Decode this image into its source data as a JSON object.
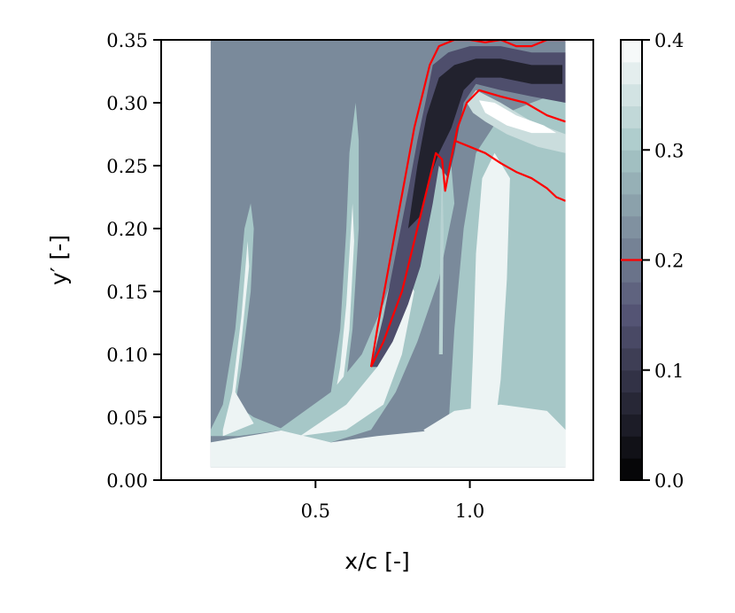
{
  "chart_data": {
    "type": "contour",
    "xlabel": "x/c [-]",
    "ylabel": "y′ [-]",
    "xlim": [
      0.0,
      1.4
    ],
    "ylim": [
      0.0,
      0.35
    ],
    "x_ticks": [
      {
        "value": 0.5,
        "label": "0.5"
      },
      {
        "value": 1.0,
        "label": "1.0"
      }
    ],
    "y_ticks": [
      {
        "value": 0.0,
        "label": "0.00"
      },
      {
        "value": 0.05,
        "label": "0.05"
      },
      {
        "value": 0.1,
        "label": "0.10"
      },
      {
        "value": 0.15,
        "label": "0.15"
      },
      {
        "value": 0.2,
        "label": "0.20"
      },
      {
        "value": 0.25,
        "label": "0.25"
      },
      {
        "value": 0.3,
        "label": "0.30"
      },
      {
        "value": 0.35,
        "label": "0.35"
      }
    ],
    "data_extent": {
      "x": [
        0.16,
        1.31
      ],
      "y": [
        0.01,
        0.35
      ]
    },
    "colorbar": {
      "range": [
        0.0,
        0.4
      ],
      "ticks": [
        {
          "value": 0.0,
          "label": "0.0"
        },
        {
          "value": 0.1,
          "label": "0.1"
        },
        {
          "value": 0.2,
          "label": "0.2"
        },
        {
          "value": 0.3,
          "label": "0.3"
        },
        {
          "value": 0.4,
          "label": "0.4"
        }
      ],
      "levels": 20,
      "colormap": "bone",
      "highlight_level": 0.2,
      "highlight_color": "#ff0000"
    },
    "background_level": 0.22,
    "grid": false,
    "regions": [
      {
        "name": "wall-band",
        "level": 0.38,
        "points": [
          [
            0.16,
            0.01
          ],
          [
            1.31,
            0.01
          ],
          [
            1.31,
            0.035
          ],
          [
            1.1,
            0.032
          ],
          [
            0.9,
            0.04
          ],
          [
            0.7,
            0.035
          ],
          [
            0.55,
            0.03
          ],
          [
            0.4,
            0.04
          ],
          [
            0.16,
            0.03
          ]
        ]
      },
      {
        "name": "left-plume-outer",
        "level": 0.3,
        "points": [
          [
            0.16,
            0.04
          ],
          [
            0.2,
            0.06
          ],
          [
            0.24,
            0.12
          ],
          [
            0.27,
            0.2
          ],
          [
            0.29,
            0.22
          ],
          [
            0.3,
            0.2
          ],
          [
            0.29,
            0.15
          ],
          [
            0.26,
            0.09
          ],
          [
            0.24,
            0.06
          ],
          [
            0.3,
            0.05
          ],
          [
            0.4,
            0.04
          ],
          [
            0.25,
            0.035
          ],
          [
            0.16,
            0.035
          ]
        ]
      },
      {
        "name": "left-plume-inner",
        "level": 0.38,
        "points": [
          [
            0.2,
            0.04
          ],
          [
            0.23,
            0.07
          ],
          [
            0.26,
            0.13
          ],
          [
            0.28,
            0.19
          ],
          [
            0.285,
            0.17
          ],
          [
            0.26,
            0.11
          ],
          [
            0.24,
            0.07
          ],
          [
            0.3,
            0.045
          ],
          [
            0.2,
            0.035
          ]
        ]
      },
      {
        "name": "middle-plume-outer",
        "level": 0.3,
        "points": [
          [
            0.5,
            0.04
          ],
          [
            0.55,
            0.07
          ],
          [
            0.58,
            0.12
          ],
          [
            0.6,
            0.2
          ],
          [
            0.61,
            0.26
          ],
          [
            0.63,
            0.3
          ],
          [
            0.64,
            0.27
          ],
          [
            0.64,
            0.2
          ],
          [
            0.62,
            0.12
          ],
          [
            0.6,
            0.08
          ],
          [
            0.56,
            0.04
          ]
        ]
      },
      {
        "name": "middle-plume-inner",
        "level": 0.38,
        "points": [
          [
            0.55,
            0.05
          ],
          [
            0.58,
            0.09
          ],
          [
            0.6,
            0.14
          ],
          [
            0.62,
            0.22
          ],
          [
            0.625,
            0.19
          ],
          [
            0.61,
            0.12
          ],
          [
            0.58,
            0.06
          ]
        ]
      },
      {
        "name": "shear-layer-outer",
        "level": 0.3,
        "points": [
          [
            0.38,
            0.04
          ],
          [
            0.55,
            0.07
          ],
          [
            0.65,
            0.1
          ],
          [
            0.72,
            0.14
          ],
          [
            0.8,
            0.2
          ],
          [
            0.87,
            0.26
          ],
          [
            0.92,
            0.31
          ],
          [
            0.95,
            0.22
          ],
          [
            0.9,
            0.16
          ],
          [
            0.83,
            0.11
          ],
          [
            0.76,
            0.07
          ],
          [
            0.68,
            0.04
          ],
          [
            0.55,
            0.03
          ]
        ]
      },
      {
        "name": "shear-layer-inner",
        "level": 0.38,
        "points": [
          [
            0.45,
            0.035
          ],
          [
            0.6,
            0.06
          ],
          [
            0.7,
            0.09
          ],
          [
            0.76,
            0.12
          ],
          [
            0.8,
            0.16
          ],
          [
            0.82,
            0.15
          ],
          [
            0.78,
            0.1
          ],
          [
            0.72,
            0.06
          ],
          [
            0.6,
            0.04
          ]
        ]
      },
      {
        "name": "wake-column-outer",
        "level": 0.3,
        "points": [
          [
            0.93,
            0.04
          ],
          [
            0.95,
            0.12
          ],
          [
            0.98,
            0.2
          ],
          [
            1.02,
            0.26
          ],
          [
            1.1,
            0.29
          ],
          [
            1.2,
            0.3
          ],
          [
            1.31,
            0.31
          ],
          [
            1.31,
            0.04
          ],
          [
            1.2,
            0.04
          ],
          [
            1.05,
            0.04
          ]
        ]
      },
      {
        "name": "wake-column-inner",
        "level": 0.38,
        "points": [
          [
            1.0,
            0.04
          ],
          [
            1.01,
            0.1
          ],
          [
            1.02,
            0.18
          ],
          [
            1.04,
            0.24
          ],
          [
            1.08,
            0.26
          ],
          [
            1.13,
            0.24
          ],
          [
            1.12,
            0.16
          ],
          [
            1.1,
            0.08
          ],
          [
            1.08,
            0.04
          ]
        ]
      },
      {
        "name": "lower-right-bulge",
        "level": 0.38,
        "points": [
          [
            0.85,
            0.04
          ],
          [
            0.95,
            0.055
          ],
          [
            1.1,
            0.06
          ],
          [
            1.25,
            0.055
          ],
          [
            1.31,
            0.04
          ],
          [
            1.31,
            0.02
          ],
          [
            1.1,
            0.02
          ],
          [
            0.9,
            0.025
          ]
        ]
      },
      {
        "name": "upper-right-lobe-outer",
        "level": 0.34,
        "points": [
          [
            0.99,
            0.3
          ],
          [
            1.02,
            0.31
          ],
          [
            1.1,
            0.3
          ],
          [
            1.2,
            0.285
          ],
          [
            1.31,
            0.275
          ],
          [
            1.31,
            0.26
          ],
          [
            1.22,
            0.265
          ],
          [
            1.12,
            0.275
          ],
          [
            1.05,
            0.285
          ],
          [
            1.01,
            0.292
          ]
        ]
      },
      {
        "name": "upper-right-lobe-inner",
        "level": 0.4,
        "points": [
          [
            1.03,
            0.302
          ],
          [
            1.08,
            0.3
          ],
          [
            1.15,
            0.29
          ],
          [
            1.24,
            0.282
          ],
          [
            1.28,
            0.276
          ],
          [
            1.2,
            0.276
          ],
          [
            1.12,
            0.282
          ],
          [
            1.05,
            0.292
          ]
        ]
      },
      {
        "name": "vortex-band-outer",
        "level": 0.14,
        "points": [
          [
            0.68,
            0.09
          ],
          [
            0.72,
            0.13
          ],
          [
            0.76,
            0.18
          ],
          [
            0.8,
            0.23
          ],
          [
            0.83,
            0.27
          ],
          [
            0.86,
            0.305
          ],
          [
            0.88,
            0.33
          ],
          [
            0.93,
            0.34
          ],
          [
            1.0,
            0.345
          ],
          [
            1.1,
            0.345
          ],
          [
            1.2,
            0.34
          ],
          [
            1.31,
            0.34
          ],
          [
            1.31,
            0.3
          ],
          [
            1.2,
            0.305
          ],
          [
            1.1,
            0.31
          ],
          [
            1.02,
            0.315
          ],
          [
            0.98,
            0.3
          ],
          [
            0.95,
            0.26
          ],
          [
            0.93,
            0.24
          ],
          [
            0.9,
            0.25
          ],
          [
            0.88,
            0.22
          ],
          [
            0.84,
            0.17
          ],
          [
            0.8,
            0.14
          ],
          [
            0.75,
            0.11
          ],
          [
            0.7,
            0.09
          ]
        ]
      },
      {
        "name": "vortex-band-inner",
        "level": 0.06,
        "points": [
          [
            0.8,
            0.2
          ],
          [
            0.83,
            0.25
          ],
          [
            0.86,
            0.29
          ],
          [
            0.9,
            0.32
          ],
          [
            0.95,
            0.33
          ],
          [
            1.02,
            0.335
          ],
          [
            1.1,
            0.335
          ],
          [
            1.2,
            0.33
          ],
          [
            1.3,
            0.33
          ],
          [
            1.3,
            0.315
          ],
          [
            1.2,
            0.315
          ],
          [
            1.1,
            0.32
          ],
          [
            1.02,
            0.32
          ],
          [
            0.98,
            0.31
          ],
          [
            0.94,
            0.28
          ],
          [
            0.9,
            0.26
          ],
          [
            0.87,
            0.24
          ],
          [
            0.84,
            0.21
          ]
        ]
      },
      {
        "name": "wake-thin-line",
        "level": 0.32,
        "points": [
          [
            0.9,
            0.1
          ],
          [
            0.905,
            0.2
          ],
          [
            0.91,
            0.25
          ],
          [
            0.915,
            0.2
          ],
          [
            0.912,
            0.1
          ]
        ]
      }
    ],
    "contour_lines": [
      {
        "name": "vortex-contour-left",
        "level": 0.2,
        "points": [
          [
            0.68,
            0.09
          ],
          [
            0.7,
            0.12
          ],
          [
            0.73,
            0.16
          ],
          [
            0.76,
            0.2
          ],
          [
            0.79,
            0.24
          ],
          [
            0.82,
            0.28
          ],
          [
            0.85,
            0.31
          ],
          [
            0.87,
            0.33
          ],
          [
            0.9,
            0.345
          ],
          [
            0.95,
            0.35
          ],
          [
            1.0,
            0.35
          ],
          [
            1.05,
            0.348
          ],
          [
            1.1,
            0.35
          ],
          [
            1.15,
            0.345
          ],
          [
            1.2,
            0.345
          ],
          [
            1.25,
            0.35
          ],
          [
            1.31,
            0.35
          ]
        ]
      },
      {
        "name": "vortex-contour-inner-edge",
        "level": 0.2,
        "points": [
          [
            0.68,
            0.09
          ],
          [
            0.72,
            0.11
          ],
          [
            0.75,
            0.13
          ],
          [
            0.78,
            0.15
          ],
          [
            0.8,
            0.17
          ],
          [
            0.83,
            0.2
          ],
          [
            0.86,
            0.23
          ],
          [
            0.89,
            0.26
          ],
          [
            0.91,
            0.255
          ],
          [
            0.92,
            0.23
          ],
          [
            0.935,
            0.25
          ],
          [
            0.96,
            0.28
          ],
          [
            0.99,
            0.3
          ],
          [
            1.03,
            0.31
          ],
          [
            1.1,
            0.305
          ],
          [
            1.18,
            0.3
          ],
          [
            1.25,
            0.29
          ],
          [
            1.31,
            0.285
          ]
        ]
      },
      {
        "name": "lobe-contour-lower",
        "level": 0.2,
        "points": [
          [
            0.95,
            0.27
          ],
          [
            1.0,
            0.265
          ],
          [
            1.05,
            0.26
          ],
          [
            1.1,
            0.252
          ],
          [
            1.15,
            0.245
          ],
          [
            1.2,
            0.24
          ],
          [
            1.25,
            0.232
          ],
          [
            1.28,
            0.225
          ],
          [
            1.31,
            0.222
          ]
        ]
      }
    ]
  }
}
